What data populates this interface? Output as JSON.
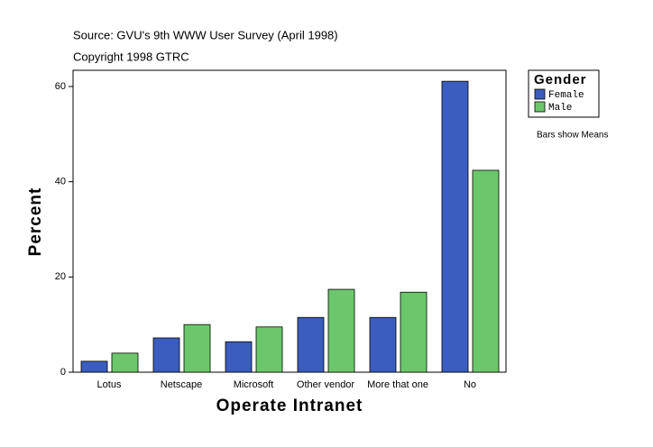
{
  "chart_data": {
    "type": "bar",
    "title": "Source: GVU's 9th WWW User Survey (April 1998)",
    "subtitle": "Copyright 1998 GTRC",
    "x_label": "Operate Intranet",
    "y_label": "Percent",
    "legend_title": "Gender",
    "note": "Bars show Means",
    "categories": [
      "Lotus",
      "Netscape",
      "Microsoft",
      "Other vendor",
      "More that one",
      "No"
    ],
    "series": [
      {
        "name": "Female",
        "color": "#3a5dbf",
        "values": [
          2.3,
          7.2,
          6.4,
          11.5,
          11.5,
          61.1
        ]
      },
      {
        "name": "Male",
        "color": "#6cc76c",
        "values": [
          4.0,
          10.0,
          9.5,
          17.4,
          16.8,
          42.4
        ]
      }
    ],
    "ylim": [
      0,
      63.4
    ],
    "yticks": [
      0,
      20,
      40,
      60
    ],
    "grid": false,
    "legend": "right"
  }
}
